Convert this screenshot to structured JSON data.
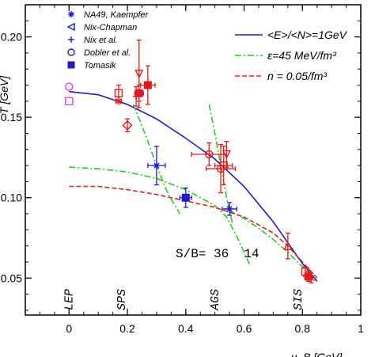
{
  "chart_data": {
    "type": "scatter",
    "ylabel": "T [GeV]",
    "xlabel": "μ_B [GeV]",
    "xlim": [
      -0.15,
      1.0
    ],
    "ylim": [
      0.027,
      0.22
    ],
    "xticks": [
      0,
      0.2,
      0.4,
      0.6,
      0.8,
      1
    ],
    "xtick_labels": [
      "0",
      "0.2",
      "0.4",
      "0.6",
      "0.8",
      "1"
    ],
    "yticks": [
      0.05,
      0.1,
      0.15,
      0.2
    ],
    "ytick_labels": [
      "0.05",
      "0.10",
      "0.15",
      "0.20"
    ],
    "colors": {
      "red": "#e01b1b",
      "blue": "#1c1ccc",
      "green": "#22cc22",
      "magenta": "#e040e0",
      "dashed_red": "#e02020"
    },
    "legend_symbols": [
      {
        "label": "NA49, Kaempfer",
        "symbol": "asterisk",
        "color": "#1c1ccc"
      },
      {
        "label": "Nix-Chapman",
        "symbol": "triangle-left",
        "color": "#1c1ccc"
      },
      {
        "label": "Nix et al.",
        "symbol": "plus",
        "color": "#1c1ccc"
      },
      {
        "label": "Dobler et al.",
        "symbol": "circle",
        "color": "#1c1ccc"
      },
      {
        "label": "Tomasik",
        "symbol": "square-filled",
        "color": "#1c1ccc"
      }
    ],
    "legend_lines": [
      {
        "label": "<E>/<N>=1GeV",
        "style": "solid",
        "color": "#1c1ccc"
      },
      {
        "label": "ε=45 MeV/fm³",
        "style": "dashdot",
        "color": "#22cc22"
      },
      {
        "label": "n = 0.05/fm³",
        "style": "dashed",
        "color": "#e02020"
      }
    ],
    "annotations": [
      {
        "text": "LEP",
        "x": -0.005
      },
      {
        "text": "SPS",
        "x": 0.175
      },
      {
        "text": "AGS",
        "x": 0.495
      },
      {
        "text": "SIS",
        "x": 0.78
      }
    ],
    "sb_text": "S/B= 36  14",
    "curves": [
      {
        "name": "<E>/<N>=1GeV",
        "color": "#1c1ccc",
        "style": "solid",
        "x": [
          0,
          0.1,
          0.2,
          0.3,
          0.4,
          0.5,
          0.6,
          0.7,
          0.75,
          0.8,
          0.85
        ],
        "y": [
          0.166,
          0.164,
          0.158,
          0.149,
          0.137,
          0.124,
          0.107,
          0.085,
          0.072,
          0.059,
          0.048
        ]
      },
      {
        "name": "ε=45 MeV/fm³ (a)",
        "color": "#22cc22",
        "style": "dashdot",
        "x": [
          0.22,
          0.26,
          0.3,
          0.34,
          0.38
        ],
        "y": [
          0.158,
          0.14,
          0.12,
          0.102,
          0.09
        ]
      },
      {
        "name": "ε=45 MeV/fm³ (b)",
        "color": "#22cc22",
        "style": "dashdot",
        "x": [
          0,
          0.1,
          0.2,
          0.3,
          0.4,
          0.5,
          0.54,
          0.58,
          0.62
        ],
        "y": [
          0.119,
          0.118,
          0.116,
          0.112,
          0.105,
          0.095,
          0.088,
          0.074,
          0.058
        ]
      },
      {
        "name": "ε=45 MeV/fm³ (c)",
        "color": "#22cc22",
        "style": "dashdot",
        "x": [
          0.48,
          0.5,
          0.52,
          0.54,
          0.56
        ],
        "y": [
          0.158,
          0.14,
          0.12,
          0.1,
          0.084
        ]
      },
      {
        "name": "ε=45 MeV/fm³ (d)",
        "color": "#22cc22",
        "style": "dashdot",
        "x": [
          0.55,
          0.6,
          0.65,
          0.7,
          0.75,
          0.8,
          0.85
        ],
        "y": [
          0.092,
          0.087,
          0.081,
          0.074,
          0.066,
          0.057,
          0.047
        ]
      },
      {
        "name": "n = 0.05/fm³",
        "color": "#e02020",
        "style": "dashed",
        "x": [
          0,
          0.1,
          0.2,
          0.3,
          0.4,
          0.5,
          0.6,
          0.7,
          0.75,
          0.8,
          0.85
        ],
        "y": [
          0.107,
          0.107,
          0.105,
          0.102,
          0.098,
          0.094,
          0.088,
          0.078,
          0.07,
          0.06,
          0.05
        ]
      }
    ],
    "points": [
      {
        "x": 0.0,
        "y": 0.169,
        "color": "#e040e0",
        "symbol": "circle"
      },
      {
        "x": 0.0,
        "y": 0.16,
        "color": "#e040e0",
        "symbol": "square"
      },
      {
        "x": 0.17,
        "y": 0.16,
        "color": "#e01b1b",
        "symbol": "asterisk",
        "xerr": 0.01
      },
      {
        "x": 0.17,
        "y": 0.165,
        "color": "#e01b1b",
        "symbol": "square",
        "yerr": 0.005
      },
      {
        "x": 0.2,
        "y": 0.145,
        "color": "#e01b1b",
        "symbol": "diamond",
        "yerr": 0.004
      },
      {
        "x": 0.24,
        "y": 0.165,
        "color": "#e01b1b",
        "symbol": "square-filled",
        "xerr": 0.015,
        "yerr": 0.005
      },
      {
        "x": 0.23,
        "y": 0.163,
        "color": "#e01b1b",
        "symbol": "plus",
        "yerr": 0.006
      },
      {
        "x": 0.24,
        "y": 0.177,
        "color": "#e01b1b",
        "symbol": "triangle-down",
        "yerr": 0.021
      },
      {
        "x": 0.27,
        "y": 0.17,
        "color": "#e01b1b",
        "symbol": "square-filled",
        "xerr": 0.025,
        "yerr": 0.012
      },
      {
        "x": 0.3,
        "y": 0.12,
        "color": "#1c1ccc",
        "symbol": "asterisk",
        "xerr": 0.03,
        "yerr": 0.012
      },
      {
        "x": 0.4,
        "y": 0.1,
        "color": "#1c1ccc",
        "symbol": "square-filled",
        "xerr": 0.02,
        "yerr": 0.006
      },
      {
        "x": 0.48,
        "y": 0.127,
        "color": "#e01b1b",
        "symbol": "circle",
        "xerr": 0.06,
        "yerr": 0.007
      },
      {
        "x": 0.52,
        "y": 0.118,
        "color": "#e01b1b",
        "symbol": "circle",
        "xerr": 0.05,
        "yerr": 0.015
      },
      {
        "x": 0.53,
        "y": 0.12,
        "color": "#e01b1b",
        "symbol": "square",
        "xerr": 0.03,
        "yerr": 0.012
      },
      {
        "x": 0.54,
        "y": 0.127,
        "color": "#e01b1b",
        "symbol": "triangle-down",
        "yerr": 0.008
      },
      {
        "x": 0.55,
        "y": 0.093,
        "color": "#1c1ccc",
        "symbol": "asterisk",
        "xerr": 0.025,
        "yerr": 0.004
      },
      {
        "x": 0.75,
        "y": 0.07,
        "color": "#e01b1b",
        "symbol": "triangle-up",
        "yerr": 0.008
      },
      {
        "x": 0.81,
        "y": 0.054,
        "color": "#e01b1b",
        "symbol": "square",
        "yerr": 0.003
      },
      {
        "x": 0.82,
        "y": 0.051,
        "color": "#e01b1b",
        "symbol": "square-filled",
        "yerr": 0.003
      },
      {
        "x": 0.83,
        "y": 0.05,
        "color": "#e01b1b",
        "symbol": "asterisk",
        "yerr": 0.003
      }
    ]
  }
}
